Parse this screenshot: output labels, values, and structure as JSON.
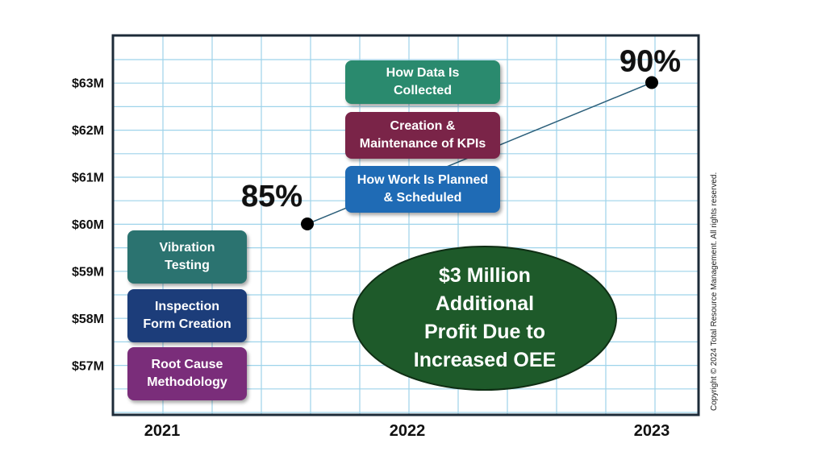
{
  "chart_data": {
    "type": "line",
    "x_categories": [
      "2021",
      "2022",
      "2023"
    ],
    "y_ticks": [
      "$57M",
      "$58M",
      "$59M",
      "$60M",
      "$61M",
      "$62M",
      "$63M"
    ],
    "ylim": [
      56,
      63.8
    ],
    "points": [
      {
        "x": 2021.6,
        "y": 60,
        "label": "85%"
      },
      {
        "x": 2023,
        "y": 63,
        "label": "90%"
      }
    ],
    "grid": true,
    "line_color": "#2c5f7a"
  },
  "boxes": {
    "data_collected": {
      "text": "How Data Is\nCollected",
      "color": "#2a8a6e"
    },
    "kpis": {
      "text": "Creation &\nMaintenance of KPIs",
      "color": "#7a2448"
    },
    "work_planned": {
      "text": "How Work Is Planned\n& Scheduled",
      "color": "#1f6bb5"
    },
    "vibration": {
      "text": "Vibration\nTesting",
      "color": "#2b7370"
    },
    "inspection": {
      "text": "Inspection\nForm Creation",
      "color": "#1c3d7a"
    },
    "root_cause": {
      "text": "Root Cause\nMethodology",
      "color": "#7a2d7a"
    }
  },
  "callout": {
    "text": "$3 Million\nAdditional\nProfit Due to\nIncreased OEE",
    "color": "#1e5a2a"
  },
  "copyright": "Copyright © 2024 Total Resource Management. All rights reserved."
}
